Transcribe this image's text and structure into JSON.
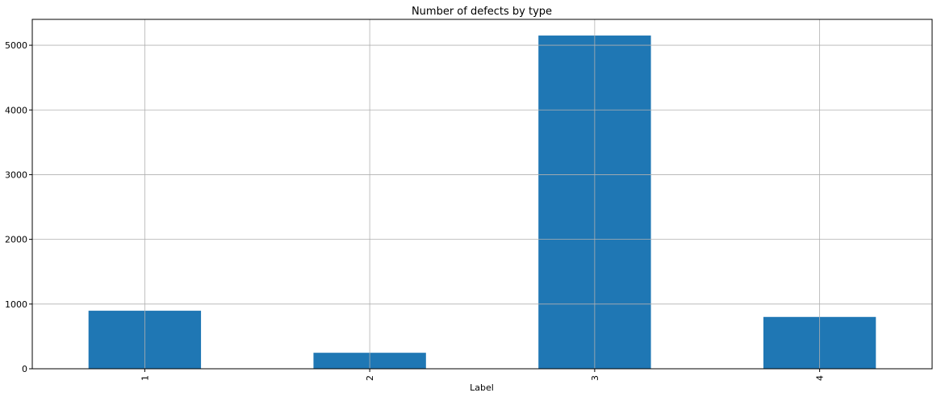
{
  "chart_data": {
    "type": "bar",
    "title": "Number of defects by type",
    "xlabel": "Label",
    "ylabel": "",
    "categories": [
      "1",
      "2",
      "3",
      "4"
    ],
    "values": [
      897,
      247,
      5150,
      801
    ],
    "ylim": [
      0,
      5400
    ],
    "yticks": [
      0,
      1000,
      2000,
      3000,
      4000,
      5000
    ],
    "grid": true,
    "bar_color": "#1f77b4",
    "grid_color": "#b0b0b0",
    "x_tick_rotation": "vertical"
  }
}
